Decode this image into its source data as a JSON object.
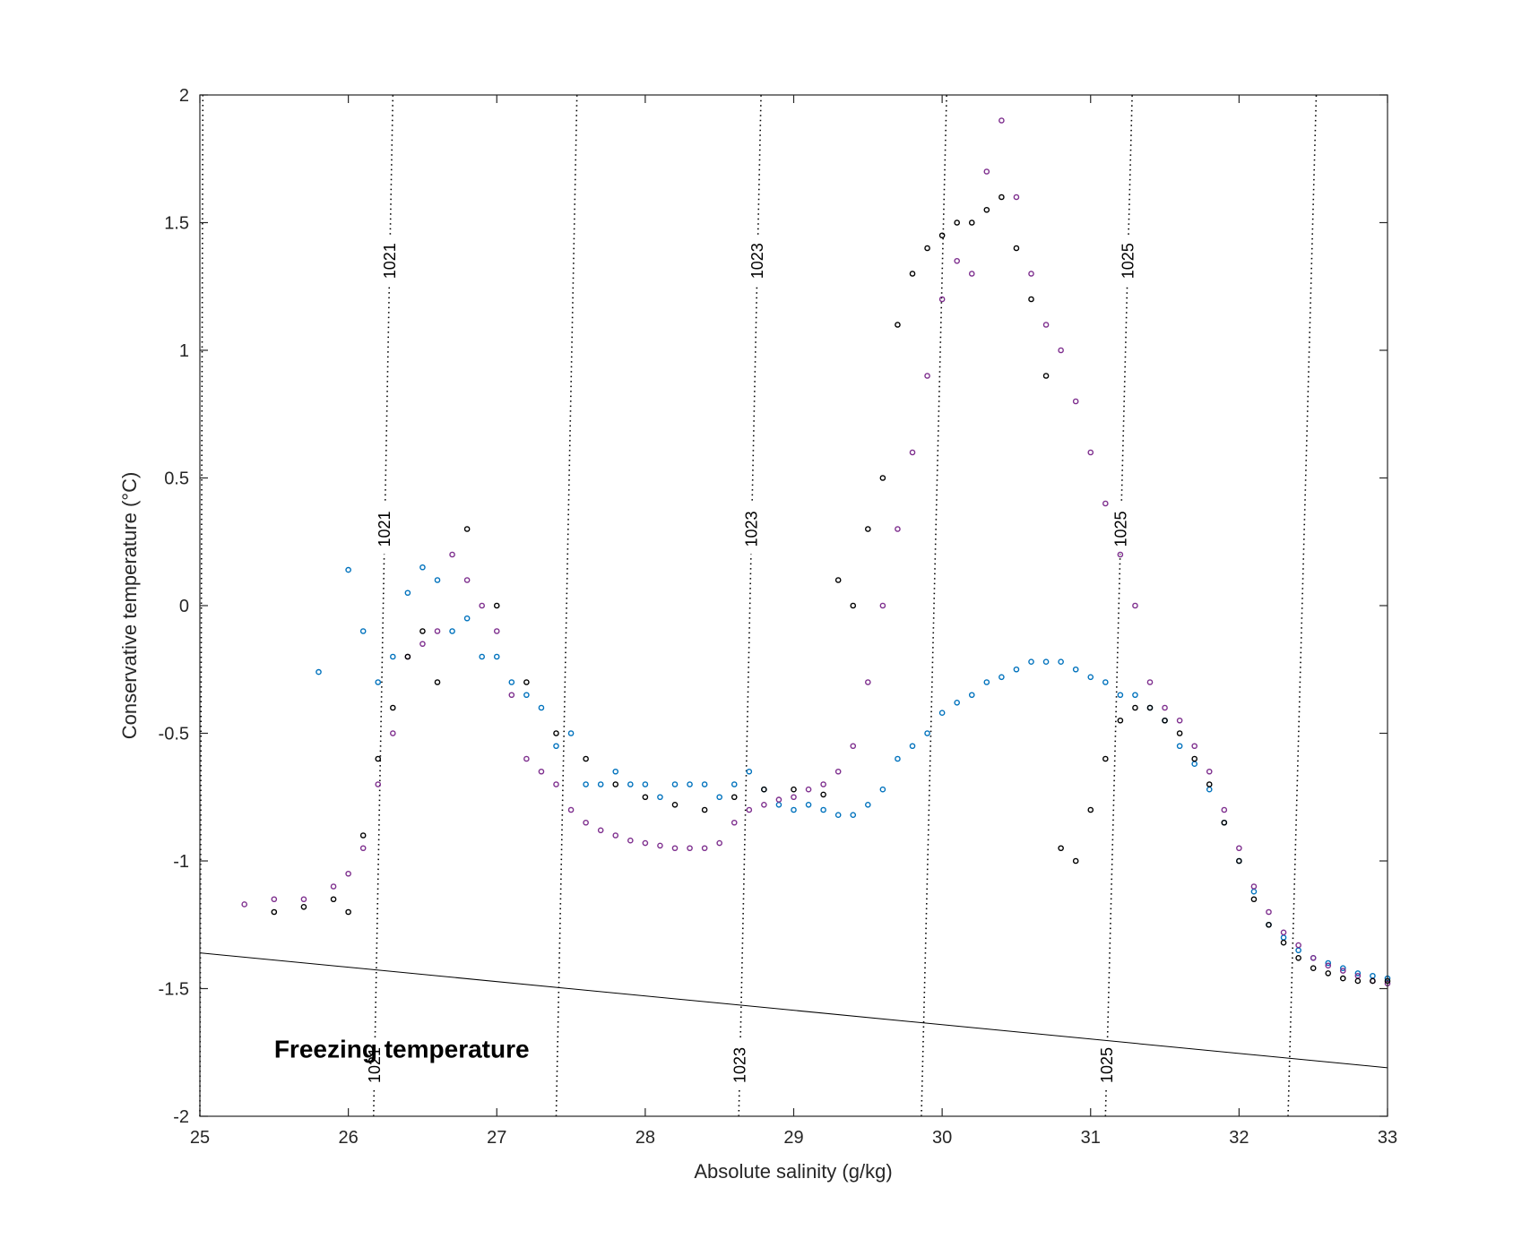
{
  "chart_data": {
    "type": "scatter",
    "xlabel": "Absolute salinity (g/kg)",
    "ylabel": "Conservative temperature  (°C)",
    "xlim": [
      25,
      33
    ],
    "ylim": [
      -2,
      2
    ],
    "x_ticks": [
      "25",
      "26",
      "27",
      "28",
      "29",
      "30",
      "31",
      "32",
      "33"
    ],
    "y_ticks": [
      "-2",
      "-1.5",
      "-1",
      "-0.5",
      "0",
      "0.5",
      "1",
      "1.5",
      "2"
    ],
    "annotations": [
      {
        "text": "Freezing temperature",
        "x": 25.5,
        "y": -1.77
      }
    ],
    "freezing_line": {
      "x": [
        25,
        33
      ],
      "y": [
        -1.36,
        -1.81
      ]
    },
    "isopycnals": [
      {
        "bottom": [
          25.0,
          -2
        ],
        "top": [
          25.02,
          2
        ],
        "label": ""
      },
      {
        "bottom": [
          26.17,
          -2
        ],
        "top": [
          26.3,
          2
        ],
        "label": "1021"
      },
      {
        "bottom": [
          27.4,
          -2
        ],
        "top": [
          27.54,
          2
        ],
        "label": ""
      },
      {
        "bottom": [
          28.63,
          -2
        ],
        "top": [
          28.78,
          2
        ],
        "label": "1023"
      },
      {
        "bottom": [
          29.86,
          -2
        ],
        "top": [
          30.03,
          2
        ],
        "label": ""
      },
      {
        "bottom": [
          31.1,
          -2
        ],
        "top": [
          31.28,
          2
        ],
        "label": "1025"
      },
      {
        "bottom": [
          32.33,
          -2
        ],
        "top": [
          32.52,
          2
        ],
        "label": ""
      }
    ],
    "isopycnal_label_y": [
      1.35,
      0.3,
      -1.8
    ],
    "series": [
      {
        "color": "#0072BD",
        "x": [
          25.8,
          26.0,
          26.1,
          26.2,
          26.3,
          26.4,
          26.5,
          26.6,
          26.7,
          26.8,
          26.9,
          27.0,
          27.1,
          27.2,
          27.3,
          27.4,
          27.5,
          27.6,
          27.7,
          27.8,
          27.9,
          28.0,
          28.1,
          28.2,
          28.3,
          28.4,
          28.5,
          28.6,
          28.7,
          28.8,
          28.9,
          29.0,
          29.1,
          29.2,
          29.3,
          29.4,
          29.5,
          29.6,
          29.7,
          29.8,
          29.9,
          30.0,
          30.1,
          30.2,
          30.3,
          30.4,
          30.5,
          30.6,
          30.7,
          30.8,
          30.9,
          31.0,
          31.1,
          31.2,
          31.3,
          31.4,
          31.5,
          31.6,
          31.7,
          31.8,
          31.9,
          32.0,
          32.1,
          32.2,
          32.3,
          32.4,
          32.5,
          32.6,
          32.7,
          32.8,
          32.9,
          33.0
        ],
        "y": [
          -0.26,
          0.14,
          -0.1,
          -0.3,
          -0.2,
          0.05,
          0.15,
          0.1,
          -0.1,
          -0.05,
          -0.2,
          -0.2,
          -0.3,
          -0.35,
          -0.4,
          -0.55,
          -0.5,
          -0.7,
          -0.7,
          -0.65,
          -0.7,
          -0.7,
          -0.75,
          -0.7,
          -0.7,
          -0.7,
          -0.75,
          -0.7,
          -0.65,
          -0.72,
          -0.78,
          -0.8,
          -0.78,
          -0.8,
          -0.82,
          -0.82,
          -0.78,
          -0.72,
          -0.6,
          -0.55,
          -0.5,
          -0.42,
          -0.38,
          -0.35,
          -0.3,
          -0.28,
          -0.25,
          -0.22,
          -0.22,
          -0.22,
          -0.25,
          -0.28,
          -0.3,
          -0.35,
          -0.35,
          -0.4,
          -0.45,
          -0.55,
          -0.62,
          -0.72,
          -0.85,
          -1.0,
          -1.12,
          -1.25,
          -1.3,
          -1.35,
          -1.38,
          -1.4,
          -1.42,
          -1.44,
          -1.45,
          -1.46
        ]
      },
      {
        "color": "#7E2F8E",
        "x": [
          25.3,
          25.5,
          25.7,
          25.9,
          26.0,
          26.1,
          26.2,
          26.3,
          26.4,
          26.5,
          26.6,
          26.7,
          26.8,
          26.9,
          27.0,
          27.1,
          27.2,
          27.3,
          27.4,
          27.5,
          27.6,
          27.7,
          27.8,
          27.9,
          28.0,
          28.1,
          28.2,
          28.3,
          28.4,
          28.5,
          28.6,
          28.7,
          28.8,
          28.9,
          29.0,
          29.1,
          29.2,
          29.3,
          29.4,
          29.5,
          29.6,
          29.7,
          29.8,
          29.9,
          30.0,
          30.1,
          30.2,
          30.3,
          30.4,
          30.5,
          30.6,
          30.7,
          30.8,
          30.9,
          31.0,
          31.1,
          31.2,
          31.3,
          31.4,
          31.5,
          31.6,
          31.7,
          31.8,
          31.9,
          32.0,
          32.1,
          32.2,
          32.3,
          32.4,
          32.5,
          32.6,
          32.7,
          32.8,
          32.9,
          33.0
        ],
        "y": [
          -1.17,
          -1.15,
          -1.15,
          -1.1,
          -1.05,
          -0.95,
          -0.7,
          -0.5,
          -0.2,
          -0.15,
          -0.1,
          0.2,
          0.1,
          0.0,
          -0.1,
          -0.35,
          -0.6,
          -0.65,
          -0.7,
          -0.8,
          -0.85,
          -0.88,
          -0.9,
          -0.92,
          -0.93,
          -0.94,
          -0.95,
          -0.95,
          -0.95,
          -0.93,
          -0.85,
          -0.8,
          -0.78,
          -0.76,
          -0.75,
          -0.72,
          -0.7,
          -0.65,
          -0.55,
          -0.3,
          0.0,
          0.3,
          0.6,
          0.9,
          1.2,
          1.35,
          1.3,
          1.7,
          1.9,
          1.6,
          1.3,
          1.1,
          1.0,
          0.8,
          0.6,
          0.4,
          0.2,
          0.0,
          -0.3,
          -0.4,
          -0.45,
          -0.55,
          -0.65,
          -0.8,
          -0.95,
          -1.1,
          -1.2,
          -1.28,
          -1.33,
          -1.38,
          -1.41,
          -1.43,
          -1.45,
          -1.47,
          -1.48
        ]
      },
      {
        "color": "#000000",
        "x": [
          25.5,
          25.7,
          25.9,
          26.0,
          26.1,
          26.2,
          26.3,
          26.4,
          26.5,
          26.6,
          26.8,
          27.0,
          27.2,
          27.4,
          27.6,
          27.8,
          28.0,
          28.2,
          28.4,
          28.6,
          28.8,
          29.0,
          29.2,
          29.3,
          29.4,
          29.5,
          29.6,
          29.7,
          29.8,
          29.9,
          30.0,
          30.1,
          30.2,
          30.3,
          30.4,
          30.5,
          30.6,
          30.7,
          30.8,
          30.9,
          31.0,
          31.1,
          31.2,
          31.3,
          31.4,
          31.5,
          31.6,
          31.7,
          31.8,
          31.9,
          32.0,
          32.1,
          32.2,
          32.3,
          32.4,
          32.5,
          32.6,
          32.7,
          32.8,
          32.9,
          33.0
        ],
        "y": [
          -1.2,
          -1.18,
          -1.15,
          -1.2,
          -0.9,
          -0.6,
          -0.4,
          -0.2,
          -0.1,
          -0.3,
          0.3,
          0.0,
          -0.3,
          -0.5,
          -0.6,
          -0.7,
          -0.75,
          -0.78,
          -0.8,
          -0.75,
          -0.72,
          -0.72,
          -0.74,
          0.1,
          0.0,
          0.3,
          0.5,
          1.1,
          1.3,
          1.4,
          1.45,
          1.5,
          1.5,
          1.55,
          1.6,
          1.4,
          1.2,
          0.9,
          -0.95,
          -1.0,
          -0.8,
          -0.6,
          -0.45,
          -0.4,
          -0.4,
          -0.45,
          -0.5,
          -0.6,
          -0.7,
          -0.85,
          -1.0,
          -1.15,
          -1.25,
          -1.32,
          -1.38,
          -1.42,
          -1.44,
          -1.46,
          -1.47,
          -1.47,
          -1.47
        ]
      }
    ]
  }
}
